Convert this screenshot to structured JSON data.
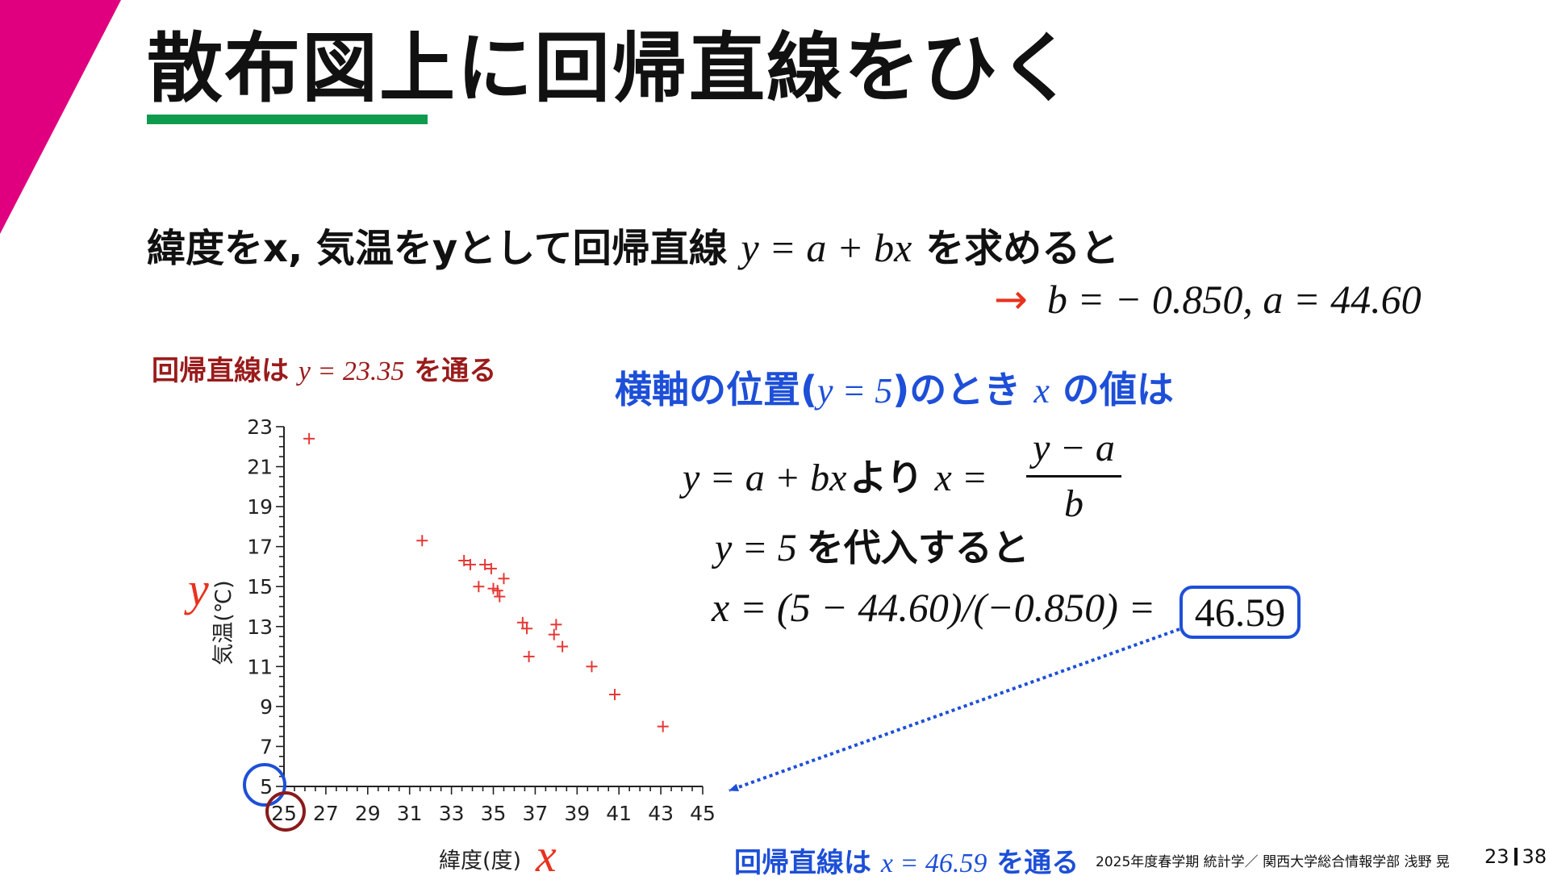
{
  "slide": {
    "title": "散布図上に回帰直線をひく",
    "intro_text": "緯度をx, 気温をyとして回帰直線",
    "intro_equation": "y = a + bx",
    "intro_suffix": "を求めると",
    "result_arrow": "→",
    "result": "b = − 0.850,   a = 44.60",
    "note_y_prefix": "回帰直線は",
    "note_y_equation": "y = 23.35",
    "note_y_suffix": "を通る",
    "question_prefix": "横軸の位置(",
    "question_equation": "y = 5",
    "question_mid": ")のとき",
    "question_var": "x",
    "question_suffix": "の値は",
    "step1_equation": "y = a + bx",
    "step1_text": "より",
    "step1_lhs": "x =",
    "step1_numerator": "y − a",
    "step1_denominator": "b",
    "step2_equation": "y = 5",
    "step2_text": "を代入すると",
    "step3_equation": "x = (5 − 44.60)/(−0.850) =",
    "answer": "46.59",
    "note_x_prefix": "回帰直線は",
    "note_x_equation": "x = 46.59",
    "note_x_suffix": "を通る",
    "footer": "2025年度春学期  統計学／  関西大学総合情報学部  浅野  晃",
    "page_current": "23",
    "page_total": "38"
  },
  "colors": {
    "accent_magenta": "#e0007f",
    "underline_green": "#0f9b4e",
    "note_red": "#9a1b1b",
    "question_blue": "#1d4fd8",
    "point_red": "#e53935",
    "arrow_red": "#e8321e",
    "circle_darkred": "#8b1a1a"
  },
  "chart_data": {
    "type": "scatter",
    "xlabel": "緯度(度)",
    "xlabel_var": "x",
    "ylabel": "気温(℃)",
    "ylabel_var": "y",
    "xlim": [
      25,
      45
    ],
    "ylim": [
      5,
      23
    ],
    "xticks": [
      25,
      27,
      29,
      31,
      33,
      35,
      37,
      39,
      41,
      43,
      45
    ],
    "yticks": [
      5,
      7,
      9,
      11,
      13,
      15,
      17,
      19,
      21,
      23
    ],
    "marker": "plus",
    "points": [
      [
        26.2,
        22.4
      ],
      [
        31.6,
        17.3
      ],
      [
        33.6,
        16.3
      ],
      [
        33.9,
        16.1
      ],
      [
        34.6,
        16.1
      ],
      [
        34.9,
        15.9
      ],
      [
        34.3,
        15.0
      ],
      [
        35.0,
        14.9
      ],
      [
        35.2,
        14.8
      ],
      [
        35.5,
        15.4
      ],
      [
        35.3,
        14.5
      ],
      [
        36.4,
        13.2
      ],
      [
        36.6,
        12.9
      ],
      [
        36.7,
        11.5
      ],
      [
        37.9,
        12.6
      ],
      [
        38.0,
        13.1
      ],
      [
        38.3,
        12.0
      ],
      [
        39.7,
        11.0
      ],
      [
        40.8,
        9.6
      ],
      [
        43.1,
        8.0
      ]
    ]
  }
}
